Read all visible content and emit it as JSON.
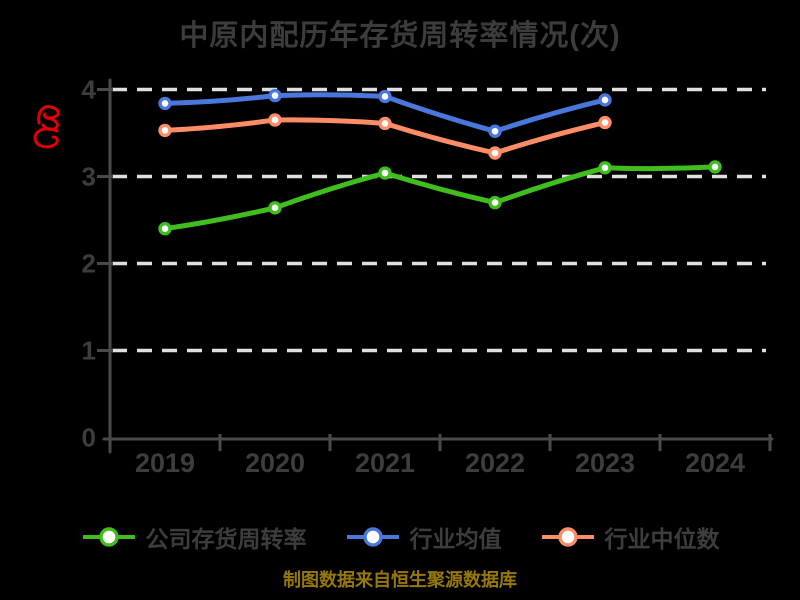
{
  "chart_data": {
    "type": "line",
    "title": "中原内配历年存货周转率情况(次)",
    "categories": [
      "2019",
      "2020",
      "2021",
      "2022",
      "2023",
      "2024"
    ],
    "series": [
      {
        "name": "公司存货周转率",
        "color": "#3fbe1e",
        "values": [
          2.4,
          2.64,
          3.04,
          2.7,
          3.1,
          3.11
        ]
      },
      {
        "name": "行业均值",
        "color": "#4a77db",
        "values": [
          3.84,
          3.93,
          3.92,
          3.52,
          3.88,
          null
        ]
      },
      {
        "name": "行业中位数",
        "color": "#fc8d66",
        "values": [
          3.53,
          3.65,
          3.61,
          3.27,
          3.62,
          null
        ]
      }
    ],
    "ylim": [
      0,
      4
    ],
    "yticks": [
      0,
      1,
      2,
      3,
      4
    ],
    "grid": "horizontal-dashed-white",
    "legend_position": "bottom",
    "marker": "circle-white-fill",
    "style": "xkcd-sketch-dark"
  },
  "footer": {
    "source_note": "制图数据来自恒生聚源数据库"
  },
  "watermark": {
    "description": "red-cursive-scribble",
    "color": "#e10000"
  },
  "colors": {
    "background": "#000000",
    "title": "#3c3c3c",
    "label": "#3d3d3d",
    "axis": "#4a4a4a",
    "grid": "#e0e0e0",
    "legend_text": "#3d3d3d",
    "footer": "#96780a"
  }
}
